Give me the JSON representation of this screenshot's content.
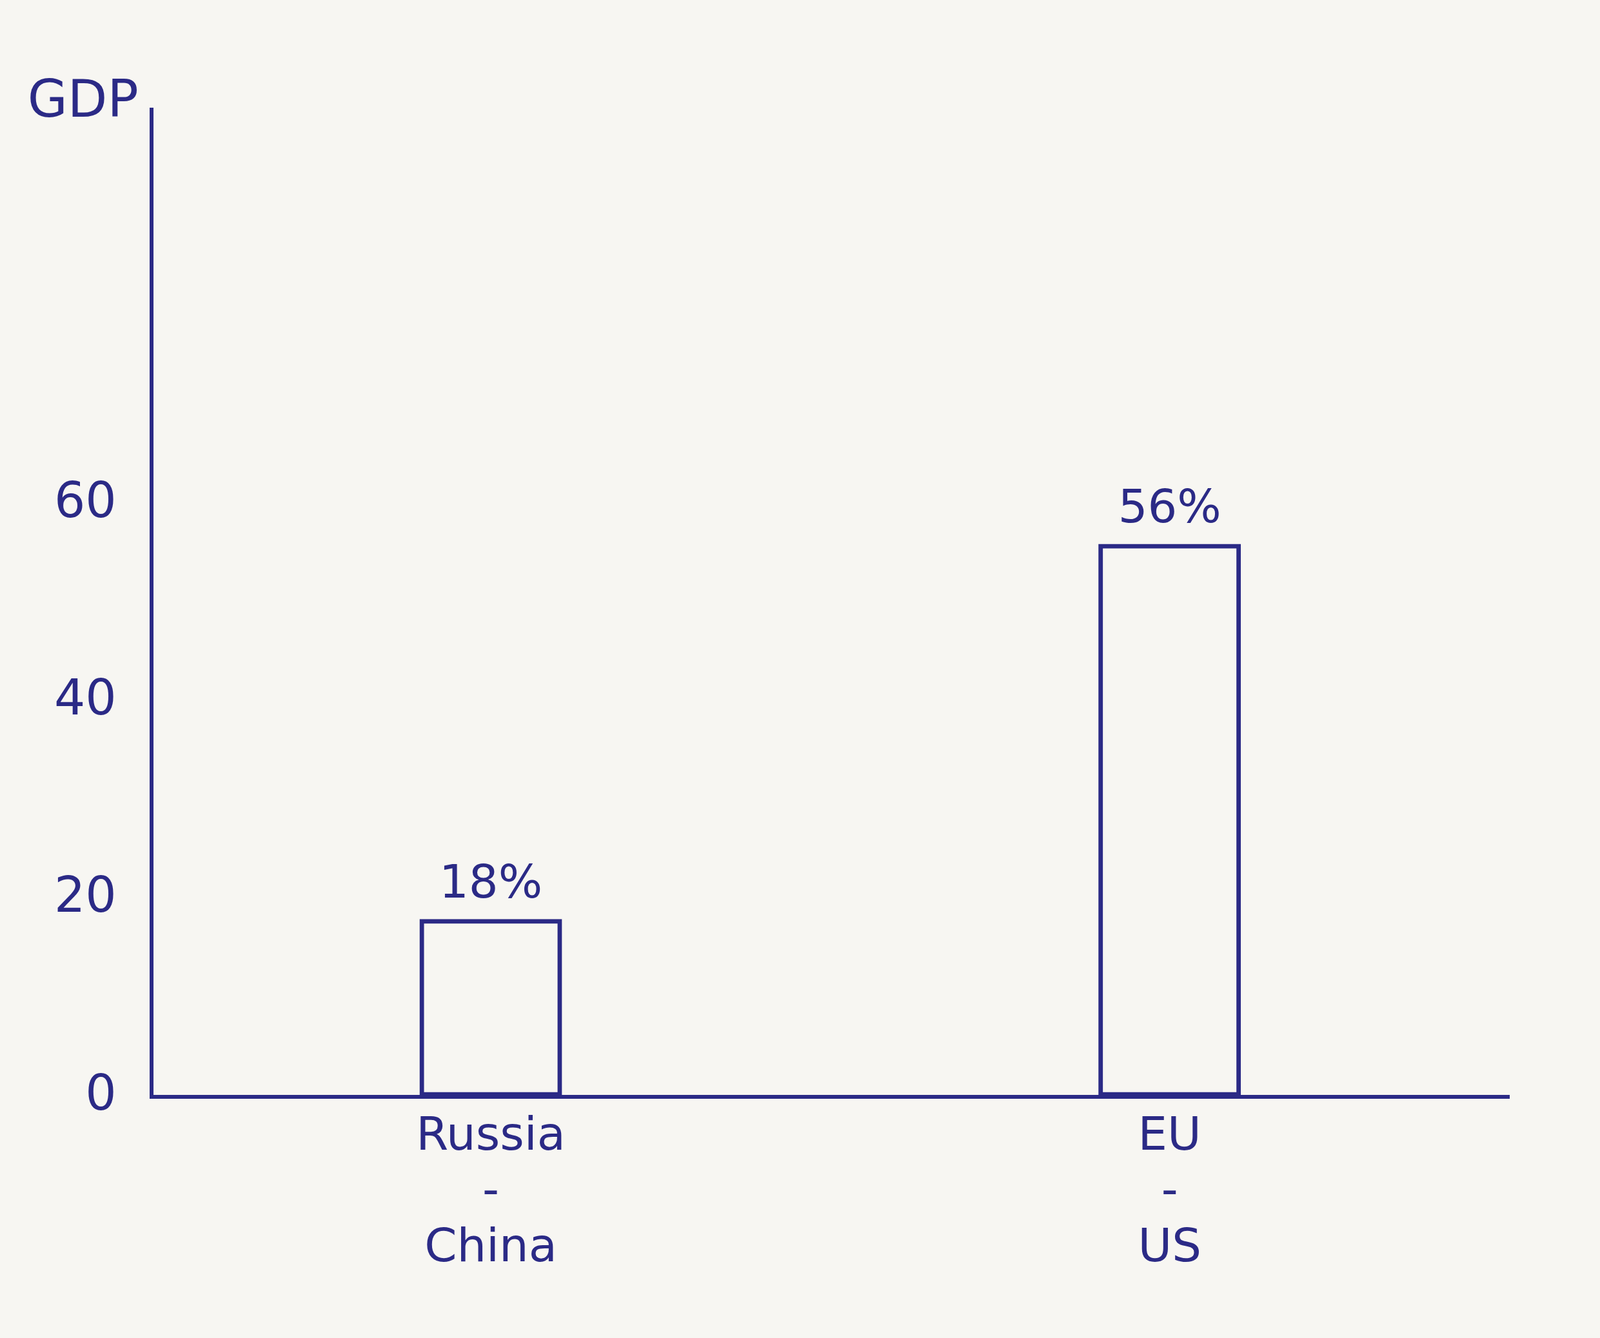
{
  "chart_data": {
    "type": "bar",
    "ylabel": "GDP",
    "categories": [
      "Russia - China",
      "EU - US"
    ],
    "values": [
      18,
      56
    ],
    "value_labels": [
      "18%",
      "56%"
    ],
    "color": "#2b2a86",
    "ylim": [
      0,
      100
    ],
    "yticks": [
      0,
      20,
      40,
      60
    ],
    "grid": false,
    "data_labels": true
  }
}
